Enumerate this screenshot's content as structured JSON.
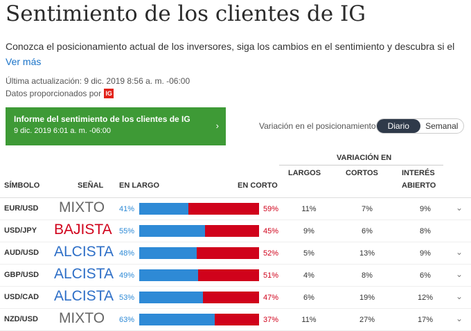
{
  "title": "Sentimiento de los clientes de IG",
  "intro": "Conozca el posicionamiento actual de los inversores, siga los cambios en el sentimiento y descubra si el",
  "more_link": "Ver más",
  "updated": "Última actualización: 9 dic. 2019 8:56 a. m. -06:00",
  "provider": {
    "text": "Datos proporcionados por",
    "logo": "IG"
  },
  "report": {
    "title": "Informe del sentimiento de los clientes de IG",
    "date": "9 dic. 2019 6:01 a. m. -06:00",
    "arrow": "›"
  },
  "toggle": {
    "label": "Variación en el posicionamiento",
    "options": [
      "Diario",
      "Semanal"
    ],
    "selected": "Diario"
  },
  "table": {
    "headers": {
      "symbol": "SÍMBOLO",
      "signal": "SEÑAL",
      "long": "EN LARGO",
      "short": "EN CORTO",
      "variation": "VARIACIÓN EN",
      "longs": "LARGOS",
      "shorts": "CORTOS",
      "oi1": "INTERÉS",
      "oi2": "ABIERTO"
    },
    "rows": [
      {
        "symbol": "EUR/USD",
        "signal": "MIXTO",
        "long_pct": "41%",
        "short_pct": "59%",
        "long_val": 41,
        "longs": "11%",
        "shorts": "7%",
        "oi": "9%",
        "expand": "⌄"
      },
      {
        "symbol": "USD/JPY",
        "signal": "BAJISTA",
        "long_pct": "55%",
        "short_pct": "45%",
        "long_val": 55,
        "longs": "9%",
        "shorts": "6%",
        "oi": "8%",
        "expand": ""
      },
      {
        "symbol": "AUD/USD",
        "signal": "ALCISTA",
        "long_pct": "48%",
        "short_pct": "52%",
        "long_val": 48,
        "longs": "5%",
        "shorts": "13%",
        "oi": "9%",
        "expand": "⌄"
      },
      {
        "symbol": "GBP/USD",
        "signal": "ALCISTA",
        "long_pct": "49%",
        "short_pct": "51%",
        "long_val": 49,
        "longs": "4%",
        "shorts": "8%",
        "oi": "6%",
        "expand": "⌄"
      },
      {
        "symbol": "USD/CAD",
        "signal": "ALCISTA",
        "long_pct": "53%",
        "short_pct": "47%",
        "long_val": 53,
        "longs": "6%",
        "shorts": "19%",
        "oi": "12%",
        "expand": "⌄"
      },
      {
        "symbol": "NZD/USD",
        "signal": "MIXTO",
        "long_pct": "63%",
        "short_pct": "37%",
        "long_val": 63,
        "longs": "11%",
        "shorts": "27%",
        "oi": "17%",
        "expand": "⌄"
      }
    ]
  },
  "colors": {
    "MIXTO": "#666666",
    "BAJISTA": "#d0021b",
    "ALCISTA": "#2e6fc7"
  }
}
